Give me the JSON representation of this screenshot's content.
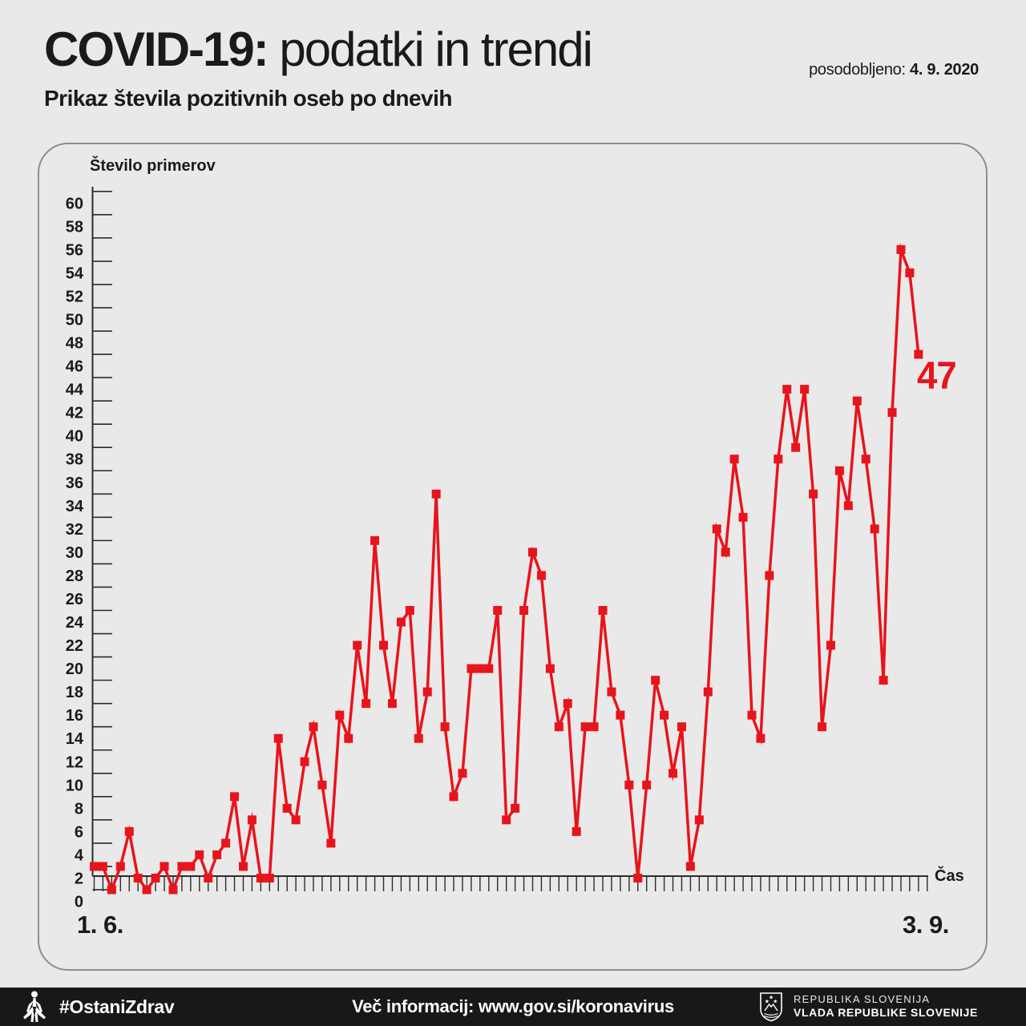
{
  "header": {
    "title_strong": "COVID-19:",
    "title_rest": " podatki in trendi",
    "updated_label": "posodobljeno:",
    "updated_date": "4. 9. 2020",
    "subtitle": "Prikaz števila pozitivnih oseb po dnevih"
  },
  "chart_data": {
    "type": "line",
    "title": "Prikaz števila pozitivnih oseb po dnevih",
    "ylabel": "Število primerov",
    "xlabel": "Čas",
    "x_start_label": "1. 6.",
    "x_end_label": "3. 9.",
    "ylim": [
      0,
      61
    ],
    "ytick_label_step": 2,
    "grid": false,
    "legend_position": "none",
    "line_color": "#e8141c",
    "annotation": {
      "text": "47",
      "color": "#e8141c"
    },
    "x_description": "daily values from 1. 6. 2020 to 3. 9. 2020",
    "series": [
      {
        "name": "Število pozitivnih oseb po dnevih",
        "values": [
          3,
          3,
          1,
          3,
          6,
          2,
          1,
          2,
          3,
          1,
          3,
          3,
          4,
          2,
          4,
          5,
          9,
          3,
          7,
          2,
          2,
          14,
          8,
          7,
          12,
          15,
          10,
          5,
          16,
          14,
          22,
          17,
          31,
          22,
          17,
          24,
          25,
          14,
          18,
          35,
          15,
          9,
          11,
          20,
          20,
          20,
          25,
          7,
          8,
          25,
          30,
          28,
          20,
          15,
          17,
          6,
          15,
          15,
          25,
          18,
          16,
          10,
          2,
          10,
          19,
          16,
          11,
          15,
          3,
          7,
          18,
          32,
          30,
          38,
          33,
          16,
          14,
          28,
          38,
          44,
          39,
          44,
          35,
          15,
          22,
          37,
          34,
          43,
          38,
          32,
          19,
          42,
          56,
          54,
          47
        ]
      }
    ]
  },
  "footer": {
    "hashtag": "#OstaniZdrav",
    "info": "Več informacij: www.gov.si/koronavirus",
    "gov_line1": "REPUBLIKA SLOVENIJA",
    "gov_line2": "VLADA REPUBLIKE SLOVENIJE"
  },
  "colors": {
    "accent_red": "#e8141c",
    "page_bg": "#e9e9e9",
    "footer_bg": "#181818",
    "axis": "#2b2b2b",
    "panel_border": "#8e8e8e"
  }
}
